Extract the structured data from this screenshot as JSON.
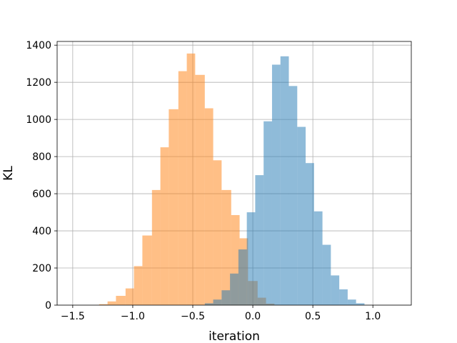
{
  "chart_data": {
    "type": "histogram",
    "title": "",
    "xlabel": "iteration",
    "ylabel": "KL",
    "xlim": [
      -1.63,
      1.32
    ],
    "ylim": [
      0,
      1420
    ],
    "grid": true,
    "legend": "none",
    "xticks": [
      -1.5,
      -1.0,
      -0.5,
      0.0,
      0.5,
      1.0
    ],
    "xtick_labels": [
      "−1.5",
      "−1.0",
      "−0.5",
      "0.0",
      "0.5",
      "1.0"
    ],
    "yticks": [
      0,
      200,
      400,
      600,
      800,
      1000,
      1200,
      1400
    ],
    "ytick_labels": [
      "0",
      "200",
      "400",
      "600",
      "800",
      "1000",
      "1200",
      "1400"
    ],
    "alpha": 0.5,
    "series": [
      {
        "color": "#ff7f0e",
        "bins": [
          {
            "x0": -1.28,
            "x1": -1.21,
            "count": 5
          },
          {
            "x0": -1.21,
            "x1": -1.14,
            "count": 20
          },
          {
            "x0": -1.14,
            "x1": -1.06,
            "count": 50
          },
          {
            "x0": -1.06,
            "x1": -0.99,
            "count": 90
          },
          {
            "x0": -0.99,
            "x1": -0.92,
            "count": 210
          },
          {
            "x0": -0.92,
            "x1": -0.84,
            "count": 375
          },
          {
            "x0": -0.84,
            "x1": -0.77,
            "count": 620
          },
          {
            "x0": -0.77,
            "x1": -0.7,
            "count": 850
          },
          {
            "x0": -0.7,
            "x1": -0.62,
            "count": 1055
          },
          {
            "x0": -0.62,
            "x1": -0.55,
            "count": 1260
          },
          {
            "x0": -0.55,
            "x1": -0.48,
            "count": 1355
          },
          {
            "x0": -0.48,
            "x1": -0.4,
            "count": 1240
          },
          {
            "x0": -0.4,
            "x1": -0.33,
            "count": 1060
          },
          {
            "x0": -0.33,
            "x1": -0.26,
            "count": 780
          },
          {
            "x0": -0.26,
            "x1": -0.18,
            "count": 620
          },
          {
            "x0": -0.18,
            "x1": -0.11,
            "count": 485
          },
          {
            "x0": -0.11,
            "x1": -0.04,
            "count": 360
          },
          {
            "x0": -0.04,
            "x1": 0.04,
            "count": 130
          },
          {
            "x0": 0.04,
            "x1": 0.11,
            "count": 40
          },
          {
            "x0": 0.11,
            "x1": 0.18,
            "count": 8
          }
        ]
      },
      {
        "color": "#1f77b4",
        "bins": [
          {
            "x0": -0.4,
            "x1": -0.33,
            "count": 10
          },
          {
            "x0": -0.33,
            "x1": -0.26,
            "count": 30
          },
          {
            "x0": -0.26,
            "x1": -0.19,
            "count": 80
          },
          {
            "x0": -0.19,
            "x1": -0.12,
            "count": 170
          },
          {
            "x0": -0.12,
            "x1": -0.05,
            "count": 300
          },
          {
            "x0": -0.05,
            "x1": 0.02,
            "count": 500
          },
          {
            "x0": 0.02,
            "x1": 0.09,
            "count": 700
          },
          {
            "x0": 0.09,
            "x1": 0.16,
            "count": 990
          },
          {
            "x0": 0.16,
            "x1": 0.23,
            "count": 1295
          },
          {
            "x0": 0.23,
            "x1": 0.3,
            "count": 1340
          },
          {
            "x0": 0.3,
            "x1": 0.37,
            "count": 1180
          },
          {
            "x0": 0.37,
            "x1": 0.44,
            "count": 960
          },
          {
            "x0": 0.44,
            "x1": 0.51,
            "count": 765
          },
          {
            "x0": 0.51,
            "x1": 0.58,
            "count": 505
          },
          {
            "x0": 0.58,
            "x1": 0.65,
            "count": 325
          },
          {
            "x0": 0.65,
            "x1": 0.72,
            "count": 160
          },
          {
            "x0": 0.72,
            "x1": 0.79,
            "count": 85
          },
          {
            "x0": 0.79,
            "x1": 0.86,
            "count": 30
          },
          {
            "x0": 0.86,
            "x1": 0.93,
            "count": 10
          }
        ]
      }
    ]
  }
}
